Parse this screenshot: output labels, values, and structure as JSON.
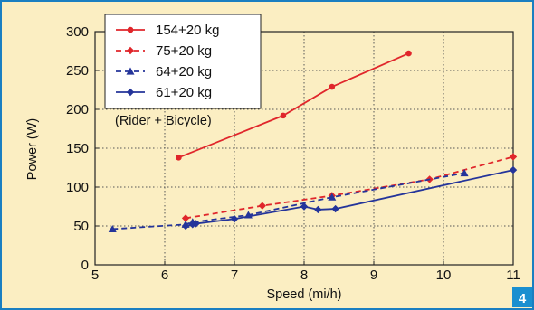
{
  "chart_data": {
    "type": "line",
    "title": "",
    "xlabel": "Speed (mi/h)",
    "ylabel": "Power (W)",
    "xlim": [
      5,
      11
    ],
    "ylim": [
      0,
      300
    ],
    "x_ticks": [
      5,
      6,
      7,
      8,
      9,
      10,
      11
    ],
    "y_ticks": [
      0,
      50,
      100,
      150,
      200,
      250,
      300
    ],
    "grid": true,
    "legend_position": "top-left",
    "annotation": "(Rider + Bicycle)",
    "panel_number": "4",
    "series": [
      {
        "name": "154+20 kg",
        "color": "#e0262b",
        "line": "solid",
        "marker": "circle",
        "points": [
          [
            6.2,
            138
          ],
          [
            7.7,
            192
          ],
          [
            8.4,
            229
          ],
          [
            9.5,
            272
          ]
        ]
      },
      {
        "name": "75+20 kg",
        "color": "#e0262b",
        "line": "dashed",
        "marker": "diamond",
        "points": [
          [
            6.3,
            60
          ],
          [
            7.4,
            76
          ],
          [
            8.4,
            89
          ],
          [
            9.8,
            110
          ],
          [
            11.0,
            139
          ]
        ]
      },
      {
        "name": "64+20 kg",
        "color": "#24349a",
        "line": "dashed",
        "marker": "triangle",
        "points": [
          [
            5.25,
            46
          ],
          [
            6.3,
            52
          ],
          [
            6.4,
            55
          ],
          [
            7.2,
            64
          ],
          [
            8.4,
            87
          ],
          [
            10.3,
            118
          ]
        ]
      },
      {
        "name": "61+20 kg",
        "color": "#24349a",
        "line": "solid",
        "marker": "diamond",
        "points": [
          [
            6.3,
            50
          ],
          [
            6.4,
            52
          ],
          [
            6.45,
            53
          ],
          [
            7.0,
            59
          ],
          [
            8.0,
            75
          ],
          [
            8.2,
            71
          ],
          [
            8.45,
            72
          ],
          [
            11.0,
            122
          ]
        ]
      }
    ]
  },
  "colors": {
    "background": "#fbeec2",
    "frame": "#1a7fc1",
    "badge": "#1a8fd0",
    "legend_bg": "#ffffff"
  }
}
